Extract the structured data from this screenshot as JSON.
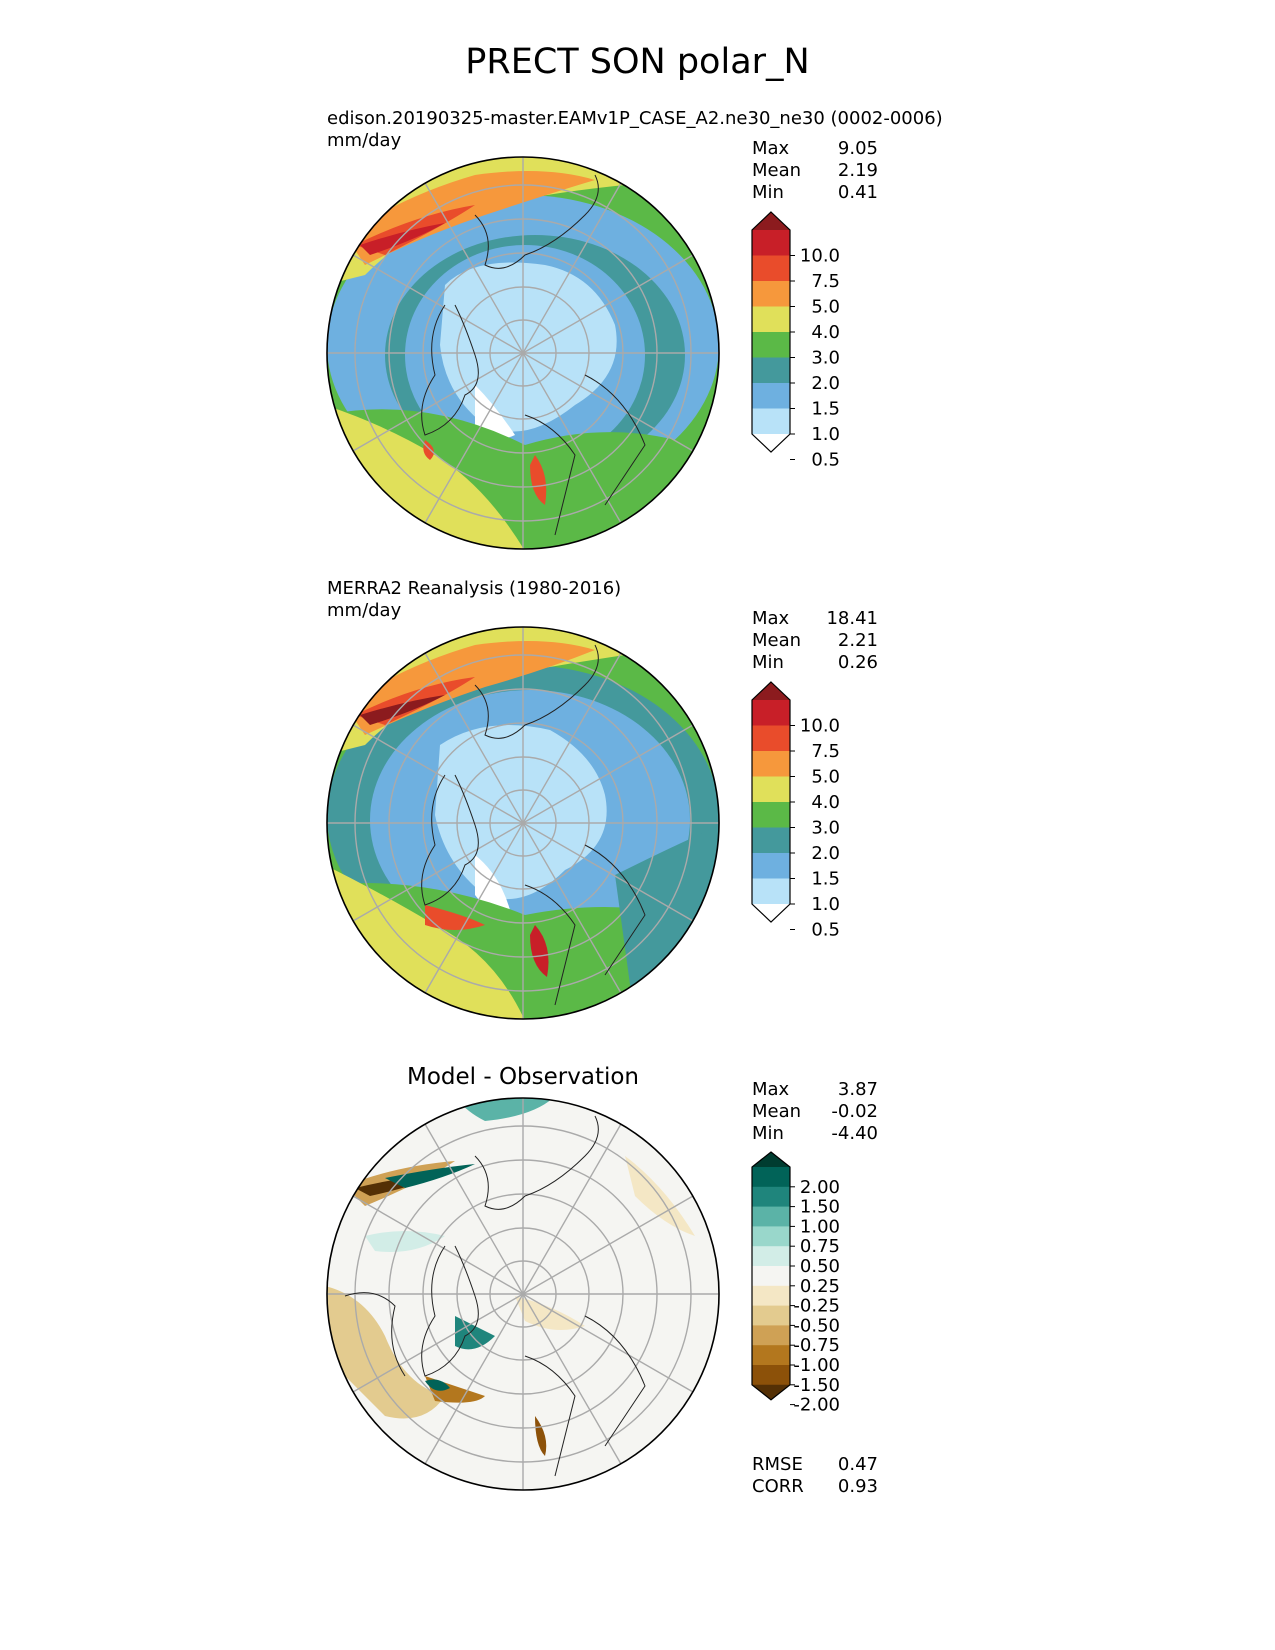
{
  "title": "PRECT SON polar_N",
  "panels": [
    {
      "title_line1": "edison.20190325-master.EAMv1P_CASE_A2.ne30_ne30 (0002-0006)",
      "title_line2": "mm/day",
      "stats": [
        {
          "label": "Max",
          "value": "9.05"
        },
        {
          "label": "Mean",
          "value": "2.19"
        },
        {
          "label": "Min",
          "value": "0.41"
        }
      ],
      "colorbar": {
        "ticks": [
          "10.0",
          "7.5",
          "5.0",
          "4.0",
          "3.0",
          "2.0",
          "1.5",
          "1.0",
          "0.5"
        ],
        "colors": [
          "#ffffff",
          "#b8e2f8",
          "#6eb0e0",
          "#44999c",
          "#5bb947",
          "#e0e05a",
          "#f6983c",
          "#e94c2b",
          "#c81f28",
          "#8c1b1e"
        ]
      }
    },
    {
      "title_line1": "MERRA2 Reanalysis (1980-2016)",
      "title_line2": "mm/day",
      "stats": [
        {
          "label": "Max",
          "value": "18.41"
        },
        {
          "label": "Mean",
          "value": "2.21"
        },
        {
          "label": "Min",
          "value": "0.26"
        }
      ],
      "colorbar": {
        "ticks": [
          "10.0",
          "7.5",
          "5.0",
          "4.0",
          "3.0",
          "2.0",
          "1.5",
          "1.0",
          "0.5"
        ],
        "colors": [
          "#ffffff",
          "#b8e2f8",
          "#6eb0e0",
          "#44999c",
          "#5bb947",
          "#e0e05a",
          "#f6983c",
          "#e94c2b",
          "#c81f28",
          "#8c1b1e"
        ]
      }
    },
    {
      "title_line1": "Model - Observation",
      "title_line2": "",
      "stats": [
        {
          "label": "Max",
          "value": "3.87"
        },
        {
          "label": "Mean",
          "value": "-0.02"
        },
        {
          "label": "Min",
          "value": "-4.40"
        }
      ],
      "extra_stats": [
        {
          "label": "RMSE",
          "value": "0.47"
        },
        {
          "label": "CORR",
          "value": "0.93"
        }
      ],
      "colorbar": {
        "ticks": [
          "2.00",
          "1.50",
          "1.00",
          "0.75",
          "0.50",
          "0.25",
          "-0.25",
          "-0.50",
          "-0.75",
          "-1.00",
          "-1.50",
          "-2.00"
        ],
        "colors": [
          "#543005",
          "#8c5109",
          "#b3771e",
          "#cfa155",
          "#e3cb8f",
          "#f4e7c5",
          "#f5f5f2",
          "#d2ede7",
          "#99d7cb",
          "#5bb3a7",
          "#1f857c",
          "#016358",
          "#003c30"
        ]
      }
    }
  ],
  "chart_data": [
    {
      "type": "heatmap",
      "projection": "polar stereographic (North Pole)",
      "title": "edison.20190325-master.EAMv1P_CASE_A2.ne30_ne30 (0002-0006)",
      "units": "mm/day",
      "levels": [
        0.5,
        1.0,
        1.5,
        2.0,
        3.0,
        4.0,
        5.0,
        7.5,
        10.0
      ],
      "extend": "both",
      "max": 9.05,
      "mean": 2.19,
      "min": 0.41
    },
    {
      "type": "heatmap",
      "projection": "polar stereographic (North Pole)",
      "title": "MERRA2 Reanalysis (1980-2016)",
      "units": "mm/day",
      "levels": [
        0.5,
        1.0,
        1.5,
        2.0,
        3.0,
        4.0,
        5.0,
        7.5,
        10.0
      ],
      "extend": "both",
      "max": 18.41,
      "mean": 2.21,
      "min": 0.26
    },
    {
      "type": "heatmap",
      "projection": "polar stereographic (North Pole)",
      "title": "Model - Observation",
      "levels": [
        -2.0,
        -1.5,
        -1.0,
        -0.75,
        -0.5,
        -0.25,
        0.25,
        0.5,
        0.75,
        1.0,
        1.5,
        2.0
      ],
      "extend": "both",
      "max": 3.87,
      "mean": -0.02,
      "min": -4.4,
      "rmse": 0.47,
      "corr": 0.93
    }
  ]
}
